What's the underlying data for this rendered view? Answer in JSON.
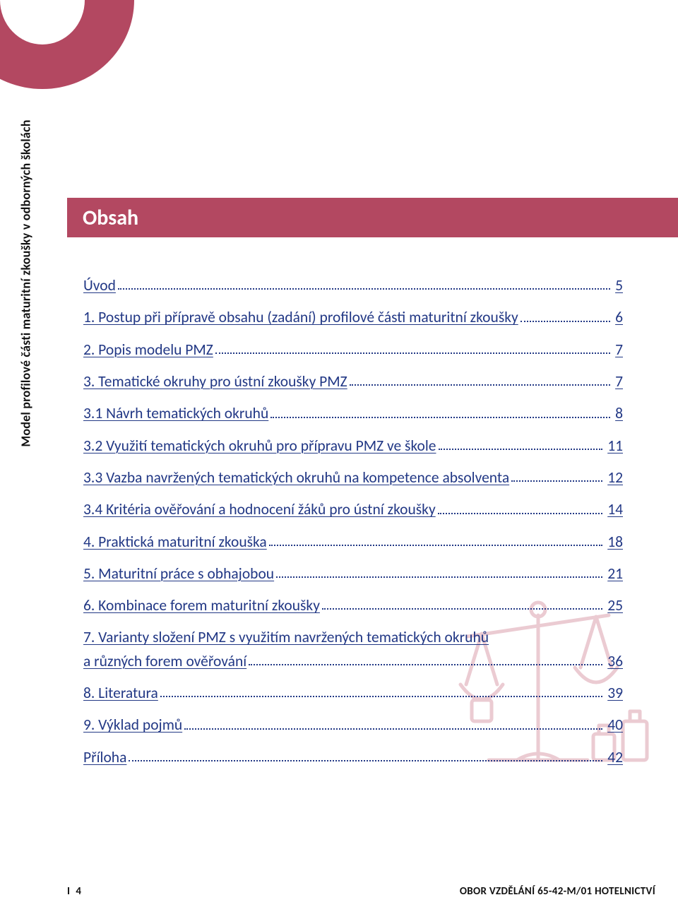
{
  "colors": {
    "brand": "#b34861",
    "link": "#223885",
    "art": "#e9c6ce",
    "text": "#111111",
    "bg": "#ffffff"
  },
  "side_label": "Model profilové části maturitní zkoušky v odborných školách",
  "header_title": "Obsah",
  "toc": [
    {
      "label": "Úvod",
      "page": "5"
    },
    {
      "label": "1. Postup při přípravě obsahu (zadání) profilové části maturitní zkoušky",
      "page": "6"
    },
    {
      "label": "2. Popis modelu PMZ",
      "page": "7"
    },
    {
      "label": "3. Tematické okruhy pro ústní zkoušky PMZ",
      "page": "7"
    },
    {
      "label": "3.1 Návrh tematických okruhů",
      "page": "8"
    },
    {
      "label": "3.2 Využití tematických okruhů pro přípravu PMZ ve škole",
      "page": "11"
    },
    {
      "label": "3.3 Vazba navržených tematických okruhů na kompetence absolventa",
      "page": "12"
    },
    {
      "label": "3.4 Kritéria ověřování a hodnocení žáků pro ústní zkoušky",
      "page": "14"
    },
    {
      "label": "4. Praktická maturitní zkouška",
      "page": "18"
    },
    {
      "label": "5. Maturitní práce s obhajobou",
      "page": "21"
    },
    {
      "label": "6. Kombinace forem maturitní zkoušky",
      "page": "25"
    },
    {
      "label_line1": "7. Varianty složení PMZ s využitím navržených tematických okruhů",
      "label_line2": "a různých forem ověřování",
      "page": "36",
      "multiline": true
    },
    {
      "label": "8. Literatura",
      "page": "39"
    },
    {
      "label": "9. Výklad pojmů",
      "page": "40"
    },
    {
      "label": "Příloha",
      "page": "42"
    }
  ],
  "footer": {
    "page_marker": "I",
    "page_number": "4",
    "right_text": "OBOR VZDĚLÁNÍ 65-42-M/01 HOTELNICTVÍ"
  }
}
